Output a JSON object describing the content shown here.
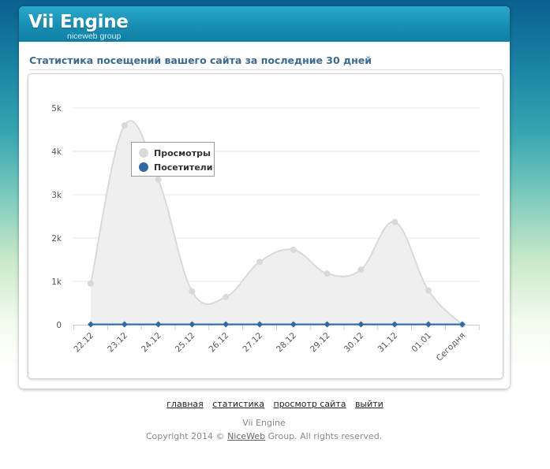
{
  "header": {
    "title": "Vii Engine",
    "subtitle": "niceweb group"
  },
  "page": {
    "section_title": "Статистика посещений вашего сайта за последние 30 дней"
  },
  "chart_data": {
    "type": "area",
    "categories": [
      "22.12",
      "23.12",
      "24.12",
      "25.12",
      "26.12",
      "27.12",
      "28.12",
      "29.12",
      "30.12",
      "31.12",
      "01.01",
      "Сегодня"
    ],
    "series": [
      {
        "name": "Просмотры",
        "values": [
          950,
          4600,
          3350,
          770,
          640,
          1450,
          1730,
          1180,
          1270,
          2370,
          790,
          0
        ],
        "color": "#d9d9d9"
      },
      {
        "name": "Посетители",
        "values": [
          10,
          10,
          10,
          10,
          10,
          10,
          10,
          10,
          10,
          10,
          10,
          10
        ],
        "color": "#2f6aa6"
      }
    ],
    "yticks": [
      "0",
      "1k",
      "2k",
      "3k",
      "4k",
      "5k"
    ],
    "ylim": [
      0,
      5000
    ],
    "grid": true,
    "legend_position": "top-left"
  },
  "footer": {
    "links": [
      "главная",
      "статистика",
      "просмотр сайта",
      "выйти"
    ],
    "brand": "Vii Engine",
    "copyright_prefix": "Copyright 2014 ©",
    "copyright_link": "NiceWeb",
    "copyright_suffix": "Group. All rights reserved."
  }
}
